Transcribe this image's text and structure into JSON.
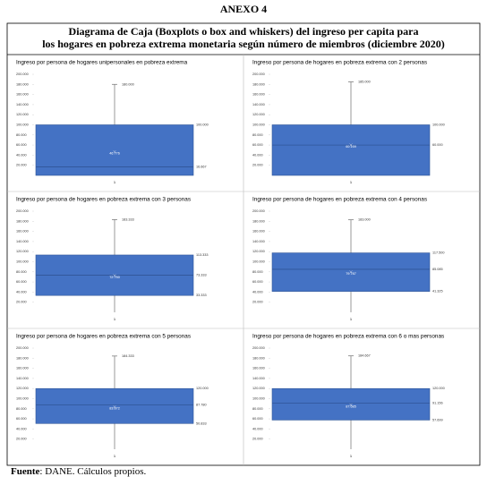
{
  "header": "ANEXO 4",
  "title": "Diagrama de Caja (Boxplots o box and whiskers) del ingreso per capita para los hogares en pobreza extrema monetaria según número de miembros (diciembre 2020)",
  "source_label": "Fuente",
  "source_text": ": DANE. Cálculos propios.",
  "chart_data": [
    {
      "type": "box",
      "title": "Ingreso por persona de hogares unipersonales en pobreza extrema",
      "categories": [
        "1"
      ],
      "ylim": [
        0,
        200000
      ],
      "yticks": [
        {
          "value": 20000,
          "label": "20.000"
        },
        {
          "value": 40000,
          "label": "40.000"
        },
        {
          "value": 60000,
          "label": "60.000"
        },
        {
          "value": 80000,
          "label": "80.000"
        },
        {
          "value": 100000,
          "label": "100.000"
        },
        {
          "value": 120000,
          "label": "120.000"
        },
        {
          "value": 140000,
          "label": "140.000"
        },
        {
          "value": 160000,
          "label": "160.000"
        },
        {
          "value": 180000,
          "label": "180.000"
        },
        {
          "value": 200000,
          "label": "200.000"
        }
      ],
      "color": "#4472c4",
      "box": {
        "min": 0,
        "q1": 0,
        "median": 16667,
        "q3": 100000,
        "max": 180000,
        "mean": 46776
      },
      "value_labels": {
        "max": "180.000",
        "q3": "100.000",
        "mean": "46.776",
        "median": "16.667"
      }
    },
    {
      "type": "box",
      "title": "Ingreso por persona de hogares en pobreza extrema con 2 personas",
      "categories": [
        "1"
      ],
      "ylim": [
        0,
        200000
      ],
      "yticks": [
        {
          "value": 20000,
          "label": "20.000"
        },
        {
          "value": 40000,
          "label": "40.000"
        },
        {
          "value": 60000,
          "label": "60.000"
        },
        {
          "value": 80000,
          "label": "80.000"
        },
        {
          "value": 100000,
          "label": "100.000"
        },
        {
          "value": 120000,
          "label": "120.000"
        },
        {
          "value": 140000,
          "label": "140.000"
        },
        {
          "value": 160000,
          "label": "160.000"
        },
        {
          "value": 180000,
          "label": "180.000"
        },
        {
          "value": 200000,
          "label": "200.000"
        }
      ],
      "color": "#4472c4",
      "box": {
        "min": 0,
        "q1": 0,
        "median": 60000,
        "q3": 100000,
        "max": 185000,
        "mean": 60159
      },
      "value_labels": {
        "max": "185.000",
        "q3": "100.000",
        "mean": "60.159",
        "median": "60.000"
      }
    },
    {
      "type": "box",
      "title": "Ingreso por persona de hogares en pobreza extrema con 3 personas",
      "categories": [
        "1"
      ],
      "ylim": [
        0,
        200000
      ],
      "yticks": [
        {
          "value": 20000,
          "label": "20.000"
        },
        {
          "value": 40000,
          "label": "40.000"
        },
        {
          "value": 60000,
          "label": "60.000"
        },
        {
          "value": 80000,
          "label": "80.000"
        },
        {
          "value": 100000,
          "label": "100.000"
        },
        {
          "value": 120000,
          "label": "120.000"
        },
        {
          "value": 140000,
          "label": "140.000"
        },
        {
          "value": 160000,
          "label": "160.000"
        },
        {
          "value": 180000,
          "label": "180.000"
        },
        {
          "value": 200000,
          "label": "200.000"
        }
      ],
      "color": "#4472c4",
      "box": {
        "min": 0,
        "q1": 33333,
        "median": 73333,
        "q3": 113333,
        "max": 183333,
        "mean": 72750
      },
      "value_labels": {
        "max": "183.333",
        "q3": "113.333",
        "mean": "72.750",
        "median": "73.333",
        "q1": "33.333"
      }
    },
    {
      "type": "box",
      "title": "Ingreso por persona de hogares en pobreza extrema con 4 personas",
      "categories": [
        "1"
      ],
      "ylim": [
        0,
        200000
      ],
      "yticks": [
        {
          "value": 20000,
          "label": "20.000"
        },
        {
          "value": 40000,
          "label": "40.000"
        },
        {
          "value": 60000,
          "label": "60.000"
        },
        {
          "value": 80000,
          "label": "80.000"
        },
        {
          "value": 100000,
          "label": "100.000"
        },
        {
          "value": 120000,
          "label": "120.000"
        },
        {
          "value": 140000,
          "label": "140.000"
        },
        {
          "value": 160000,
          "label": "160.000"
        },
        {
          "value": 180000,
          "label": "180.000"
        },
        {
          "value": 200000,
          "label": "200.000"
        }
      ],
      "color": "#4472c4",
      "box": {
        "min": 0,
        "q1": 41325,
        "median": 85085,
        "q3": 117500,
        "max": 183000,
        "mean": 79787
      },
      "value_labels": {
        "max": "183.000",
        "q3": "117.500",
        "mean": "79.787",
        "median": "85.085",
        "q1": "41.325"
      }
    },
    {
      "type": "box",
      "title": "Ingreso por persona de hogares en pobreza extrema con 5 personas",
      "categories": [
        "1"
      ],
      "ylim": [
        0,
        200000
      ],
      "yticks": [
        {
          "value": 20000,
          "label": "20.000"
        },
        {
          "value": 40000,
          "label": "40.000"
        },
        {
          "value": 60000,
          "label": "60.000"
        },
        {
          "value": 80000,
          "label": "80.000"
        },
        {
          "value": 100000,
          "label": "100.000"
        },
        {
          "value": 120000,
          "label": "120.000"
        },
        {
          "value": 140000,
          "label": "140.000"
        },
        {
          "value": 160000,
          "label": "160.000"
        },
        {
          "value": 180000,
          "label": "180.000"
        },
        {
          "value": 200000,
          "label": "200.000"
        }
      ],
      "color": "#4472c4",
      "box": {
        "min": 0,
        "q1": 50833,
        "median": 87780,
        "q3": 120000,
        "max": 184333,
        "mean": 83872
      },
      "value_labels": {
        "max": "184.333",
        "q3": "120.000",
        "mean": "83.872",
        "median": "87.780",
        "q1": "50.833"
      }
    },
    {
      "type": "box",
      "title": "Ingreso por persona de hogares en pobreza extrema con 6 o mas personas",
      "categories": [
        "1"
      ],
      "ylim": [
        0,
        200000
      ],
      "yticks": [
        {
          "value": 20000,
          "label": "20.000"
        },
        {
          "value": 40000,
          "label": "40.000"
        },
        {
          "value": 60000,
          "label": "60.000"
        },
        {
          "value": 80000,
          "label": "80.000"
        },
        {
          "value": 100000,
          "label": "100.000"
        },
        {
          "value": 120000,
          "label": "120.000"
        },
        {
          "value": 140000,
          "label": "140.000"
        },
        {
          "value": 160000,
          "label": "160.000"
        },
        {
          "value": 180000,
          "label": "180.000"
        },
        {
          "value": 200000,
          "label": "200.000"
        }
      ],
      "color": "#4472c4",
      "box": {
        "min": 0,
        "q1": 57699,
        "median": 91156,
        "q3": 120000,
        "max": 184667,
        "mean": 87685
      },
      "value_labels": {
        "max": "184.667",
        "q3": "120.000",
        "mean": "87.685",
        "median": "91.156",
        "q1": "57.699"
      }
    }
  ]
}
